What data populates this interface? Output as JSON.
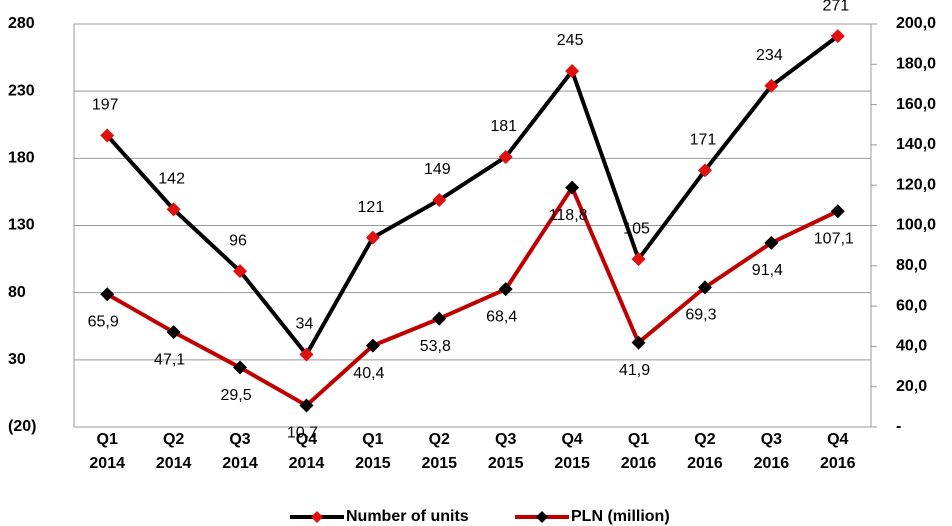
{
  "chart_data": {
    "type": "line",
    "categories": [
      "Q1 2014",
      "Q2 2014",
      "Q3 2014",
      "Q4 2014",
      "Q1 2015",
      "Q2 2015",
      "Q3 2015",
      "Q4 2015",
      "Q1 2016",
      "Q2 2016",
      "Q3 2016",
      "Q4 2016"
    ],
    "series": [
      {
        "name": "Number of units",
        "color": "#000000",
        "marker_color": "#e01010",
        "values": [
          197,
          142,
          96,
          34,
          121,
          149,
          181,
          245,
          105,
          171,
          234,
          271
        ]
      },
      {
        "name": "PLN (million)",
        "color": "#c00000",
        "marker_color": "#000000",
        "axis": "y2",
        "values": [
          65.9,
          47.1,
          29.5,
          10.7,
          40.4,
          53.8,
          68.4,
          118.8,
          41.9,
          69.3,
          91.4,
          107.1
        ],
        "value_labels": [
          "65,9",
          "47,1",
          "29,5",
          "10,7",
          "40,4",
          "53,8",
          "68,4",
          "118,8",
          "41,9",
          "69,3",
          "91,4",
          "107,1"
        ]
      }
    ],
    "ylim": [
      -20,
      280
    ],
    "yticks": [
      {
        "value": -20,
        "label": "(20)"
      },
      30,
      80,
      130,
      180,
      230,
      280
    ],
    "y2lim": [
      0,
      200
    ],
    "y2ticks": [
      {
        "value": 0,
        "label": "-"
      },
      {
        "value": 20,
        "label": "20,0"
      },
      {
        "value": 40,
        "label": "40,0"
      },
      {
        "value": 60,
        "label": "60,0"
      },
      {
        "value": 80,
        "label": "80,0"
      },
      {
        "value": 100,
        "label": "100,0"
      },
      {
        "value": 120,
        "label": "120,0"
      },
      {
        "value": 140,
        "label": "140,0"
      },
      {
        "value": 160,
        "label": "160,0"
      },
      {
        "value": 180,
        "label": "180,0"
      },
      {
        "value": 200,
        "label": "200,0"
      }
    ],
    "grid": true,
    "legend": "bottom"
  }
}
